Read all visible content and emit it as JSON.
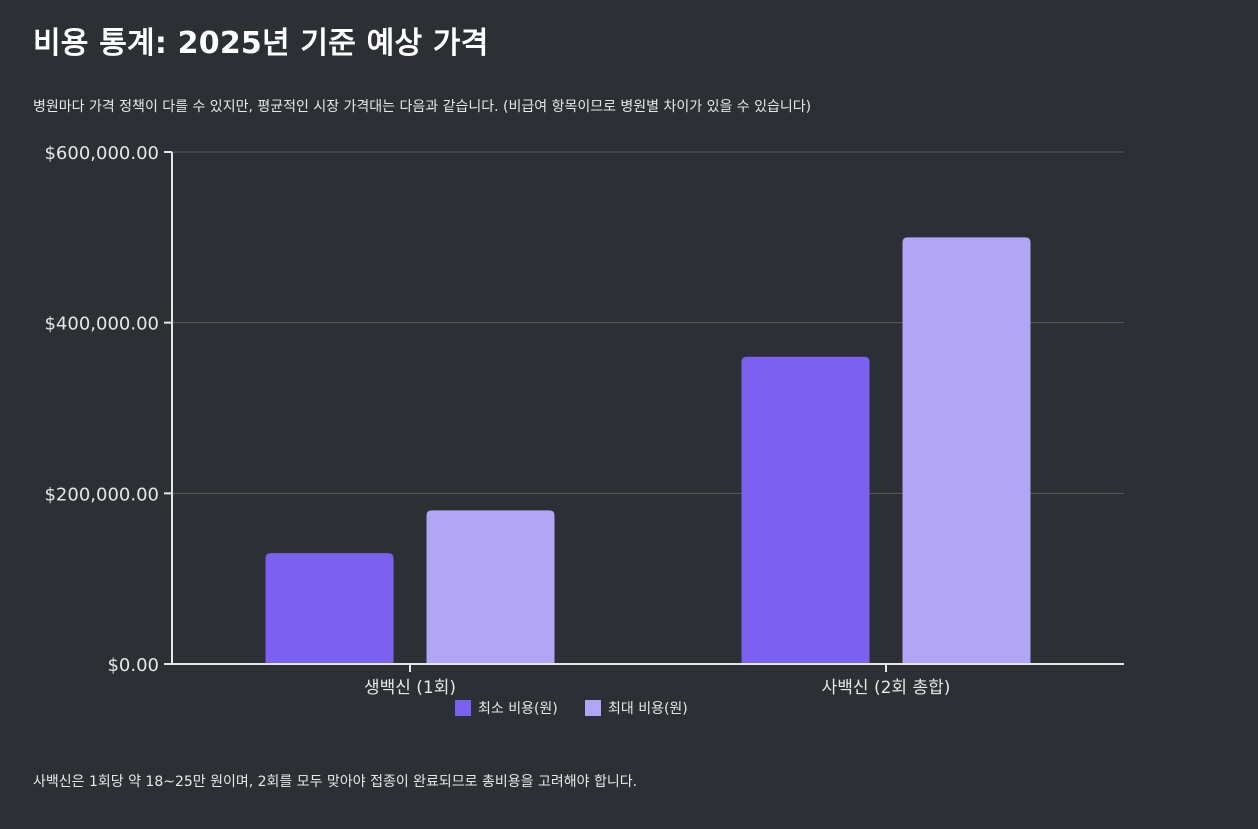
{
  "header": {
    "title": "비용 통계: 2025년 기준 예상 가격",
    "subtitle": "병원마다 가격 정책이 다를 수 있지만, 평균적인 시장 가격대는 다음과 같습니다. (비급여 항목이므로 병원별 차이가 있을 수 있습니다)"
  },
  "footer": {
    "note": "사백신은 1회당 약 18~25만 원이며, 2회를 모두 맞아야 접종이 완료되므로 총비용을 고려해야 합니다."
  },
  "colors": {
    "background": "#2c2f33",
    "series_min": "#7a61f1",
    "series_max": "#b2a5f5",
    "grid": "#5a5d61",
    "axis": "#e6e6e6"
  },
  "chart_data": {
    "type": "bar",
    "categories": [
      "생백신 (1회)",
      "사백신 (2회 총합)"
    ],
    "series": [
      {
        "name": "최소 비용(원)",
        "values": [
          130000,
          360000
        ]
      },
      {
        "name": "최대 비용(원)",
        "values": [
          180000,
          500000
        ]
      }
    ],
    "y_ticks": [
      {
        "value": 0,
        "label": "$0.00"
      },
      {
        "value": 200000,
        "label": "$200,000.00"
      },
      {
        "value": 400000,
        "label": "$400,000.00"
      },
      {
        "value": 600000,
        "label": "$600,000.00"
      }
    ],
    "ylim": [
      0,
      600000
    ],
    "grid": true,
    "legend_position": "bottom"
  }
}
